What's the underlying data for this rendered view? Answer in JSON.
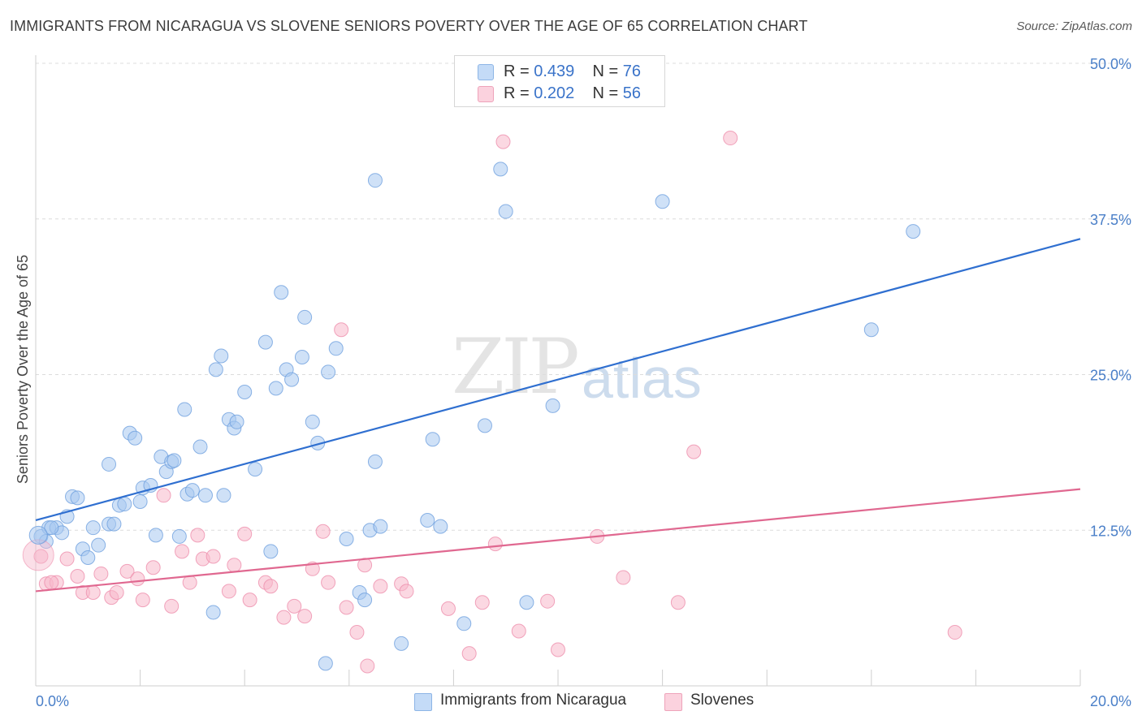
{
  "title": "IMMIGRANTS FROM NICARAGUA VS SLOVENE SENIORS POVERTY OVER THE AGE OF 65 CORRELATION CHART",
  "source": "Source: ZipAtlas.com",
  "watermark": {
    "zip": "ZIP",
    "atlas": "atlas"
  },
  "legend": {
    "rows": [
      {
        "r_label": "R =",
        "r_value": "0.439",
        "n_label": "N =",
        "n_value": "76",
        "color": "#a8c8f0"
      },
      {
        "r_label": "R =",
        "r_value": "0.202",
        "n_label": "N =",
        "n_value": "56",
        "color": "#f7b8cb"
      }
    ]
  },
  "bottom_legend": [
    {
      "label": "Immigrants from Nicaragua",
      "color": "#a8c8f0"
    },
    {
      "label": "Slovenes",
      "color": "#f7b8cb"
    }
  ],
  "chart_data": {
    "type": "scatter",
    "title": "IMMIGRANTS FROM NICARAGUA VS SLOVENE SENIORS POVERTY OVER THE AGE OF 65 CORRELATION CHART",
    "xlabel": "",
    "ylabel": "Seniors Poverty Over the Age of 65",
    "xlim": [
      0,
      20
    ],
    "ylim": [
      0,
      50
    ],
    "x_tick_labels": [
      "0.0%",
      "20.0%"
    ],
    "y_tick_labels": [
      "12.5%",
      "25.0%",
      "37.5%",
      "50.0%"
    ],
    "y_tick_values": [
      12.5,
      25,
      37.5,
      50
    ],
    "grid": true,
    "legend_placement": "top-center",
    "series": [
      {
        "name": "Immigrants from Nicaragua",
        "color": "#6fa0de",
        "fill": "#a8c8f0",
        "trend": {
          "x": [
            0,
            20
          ],
          "y": [
            13.3,
            35.9
          ],
          "color": "#2f6fd0"
        },
        "points": [
          [
            0.1,
            12.0
          ],
          [
            0.2,
            11.6
          ],
          [
            0.25,
            12.7
          ],
          [
            0.4,
            12.7
          ],
          [
            0.5,
            12.3
          ],
          [
            0.6,
            13.6
          ],
          [
            0.7,
            15.2
          ],
          [
            0.8,
            15.1
          ],
          [
            0.9,
            11.0
          ],
          [
            1.0,
            10.3
          ],
          [
            1.1,
            12.7
          ],
          [
            1.2,
            11.3
          ],
          [
            1.4,
            13.0
          ],
          [
            1.4,
            17.8
          ],
          [
            1.5,
            13.0
          ],
          [
            1.6,
            14.5
          ],
          [
            1.7,
            14.6
          ],
          [
            1.8,
            20.3
          ],
          [
            1.9,
            19.9
          ],
          [
            2.0,
            14.8
          ],
          [
            2.05,
            15.9
          ],
          [
            2.2,
            16.1
          ],
          [
            2.3,
            12.1
          ],
          [
            2.4,
            18.4
          ],
          [
            2.5,
            17.2
          ],
          [
            2.6,
            18.0
          ],
          [
            2.65,
            18.1
          ],
          [
            2.75,
            12.0
          ],
          [
            2.85,
            22.2
          ],
          [
            2.9,
            15.4
          ],
          [
            3.0,
            15.7
          ],
          [
            3.15,
            19.2
          ],
          [
            3.25,
            15.3
          ],
          [
            3.4,
            5.9
          ],
          [
            3.45,
            25.4
          ],
          [
            3.55,
            26.5
          ],
          [
            3.6,
            15.3
          ],
          [
            3.7,
            21.4
          ],
          [
            3.8,
            20.7
          ],
          [
            3.85,
            21.2
          ],
          [
            4.0,
            23.6
          ],
          [
            4.2,
            17.4
          ],
          [
            4.4,
            27.6
          ],
          [
            4.5,
            10.8
          ],
          [
            4.6,
            23.9
          ],
          [
            4.7,
            31.6
          ],
          [
            4.8,
            25.4
          ],
          [
            4.9,
            24.6
          ],
          [
            5.1,
            26.4
          ],
          [
            5.15,
            29.6
          ],
          [
            5.3,
            21.2
          ],
          [
            5.4,
            19.5
          ],
          [
            5.55,
            1.8
          ],
          [
            5.6,
            25.2
          ],
          [
            5.75,
            27.1
          ],
          [
            5.95,
            11.8
          ],
          [
            6.2,
            7.5
          ],
          [
            6.3,
            6.9
          ],
          [
            6.4,
            12.5
          ],
          [
            6.5,
            18.0
          ],
          [
            6.5,
            40.6
          ],
          [
            6.6,
            12.8
          ],
          [
            7.0,
            3.4
          ],
          [
            7.5,
            13.3
          ],
          [
            7.6,
            19.8
          ],
          [
            7.75,
            12.8
          ],
          [
            8.2,
            5.0
          ],
          [
            8.6,
            20.9
          ],
          [
            8.9,
            41.5
          ],
          [
            9.0,
            38.1
          ],
          [
            9.4,
            6.7
          ],
          [
            9.9,
            22.5
          ],
          [
            12.0,
            38.9
          ],
          [
            16.0,
            28.6
          ],
          [
            16.8,
            36.5
          ],
          [
            0.3,
            12.7
          ]
        ]
      },
      {
        "name": "Slovenes",
        "color": "#ee8fad",
        "fill": "#f7b8cb",
        "trend": {
          "x": [
            0,
            20
          ],
          "y": [
            7.6,
            15.8
          ],
          "color": "#e06890"
        },
        "points": [
          [
            0.1,
            10.4
          ],
          [
            0.2,
            8.2
          ],
          [
            0.4,
            8.3
          ],
          [
            0.6,
            10.2
          ],
          [
            0.8,
            8.8
          ],
          [
            0.9,
            7.5
          ],
          [
            1.1,
            7.5
          ],
          [
            1.25,
            9.0
          ],
          [
            1.45,
            7.1
          ],
          [
            1.55,
            7.5
          ],
          [
            1.75,
            9.2
          ],
          [
            1.95,
            8.6
          ],
          [
            2.05,
            6.9
          ],
          [
            2.25,
            9.5
          ],
          [
            2.45,
            15.3
          ],
          [
            2.6,
            6.4
          ],
          [
            2.8,
            10.8
          ],
          [
            2.95,
            8.3
          ],
          [
            3.1,
            12.1
          ],
          [
            3.2,
            10.2
          ],
          [
            3.4,
            10.4
          ],
          [
            3.7,
            7.6
          ],
          [
            3.8,
            9.7
          ],
          [
            4.0,
            12.2
          ],
          [
            4.1,
            6.9
          ],
          [
            4.4,
            8.3
          ],
          [
            4.5,
            8.0
          ],
          [
            4.75,
            5.5
          ],
          [
            4.95,
            6.4
          ],
          [
            5.15,
            5.6
          ],
          [
            5.3,
            9.4
          ],
          [
            5.5,
            12.4
          ],
          [
            5.6,
            8.3
          ],
          [
            5.85,
            28.6
          ],
          [
            5.95,
            6.3
          ],
          [
            6.15,
            4.3
          ],
          [
            6.3,
            9.7
          ],
          [
            6.35,
            1.6
          ],
          [
            6.6,
            8.0
          ],
          [
            7.0,
            8.2
          ],
          [
            7.1,
            7.6
          ],
          [
            7.9,
            6.2
          ],
          [
            8.3,
            2.6
          ],
          [
            8.55,
            6.7
          ],
          [
            8.8,
            11.4
          ],
          [
            8.95,
            43.7
          ],
          [
            9.25,
            4.4
          ],
          [
            9.8,
            6.8
          ],
          [
            10.0,
            2.9
          ],
          [
            10.75,
            12.0
          ],
          [
            11.25,
            8.7
          ],
          [
            12.3,
            6.7
          ],
          [
            12.6,
            18.8
          ],
          [
            13.3,
            44.0
          ],
          [
            17.6,
            4.3
          ],
          [
            0.3,
            8.3
          ]
        ]
      }
    ]
  }
}
